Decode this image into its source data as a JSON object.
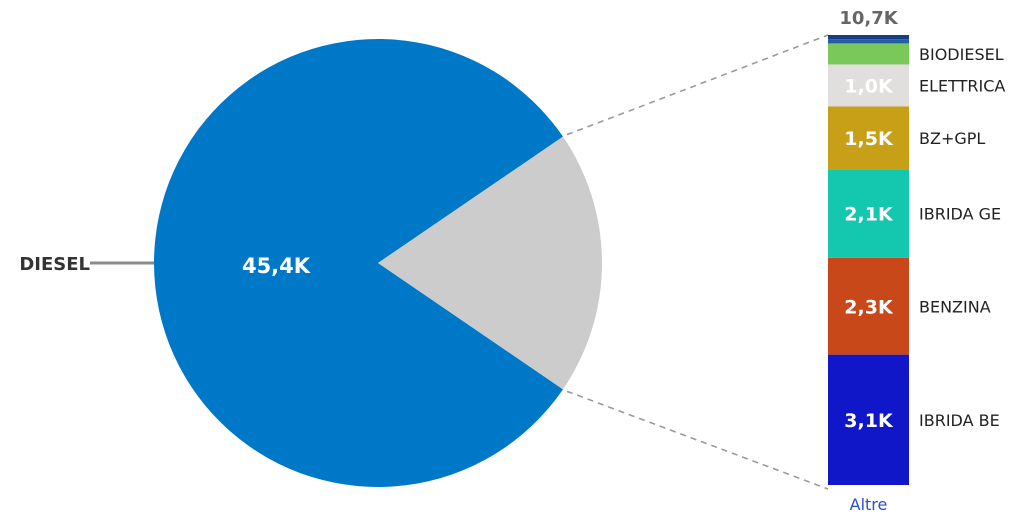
{
  "chart_data": {
    "type": "pie",
    "main_slice": {
      "label": "DIESEL",
      "value": 45.4,
      "value_label": "45,4K",
      "color": "#0078c8"
    },
    "other_slice": {
      "label": "Altre",
      "value": 10.7,
      "value_label": "10,7K",
      "color": "#cccccc"
    },
    "breakdown": [
      {
        "label": "IBRIDA BE",
        "value": 3.1,
        "value_label": "3,1K",
        "color": "#1017c8"
      },
      {
        "label": "BENZINA",
        "value": 2.3,
        "value_label": "2,3K",
        "color": "#c8481a"
      },
      {
        "label": "IBRIDA GE",
        "value": 2.1,
        "value_label": "2,1K",
        "color": "#14c8b0"
      },
      {
        "label": "BZ+GPL",
        "value": 1.5,
        "value_label": "1,5K",
        "color": "#c8a017"
      },
      {
        "label": "ELETTRICA",
        "value": 1.0,
        "value_label": "1,0K",
        "color": "#e1dfdd"
      },
      {
        "label": "BIODIESEL",
        "value": 0.5,
        "value_label": "",
        "color": "#7ac859"
      },
      {
        "label": "",
        "value": 0.1,
        "value_label": "",
        "color": "#1f5fa8"
      },
      {
        "label": "",
        "value": 0.1,
        "value_label": "",
        "color": "#1a3c80"
      }
    ],
    "unit": "K"
  }
}
